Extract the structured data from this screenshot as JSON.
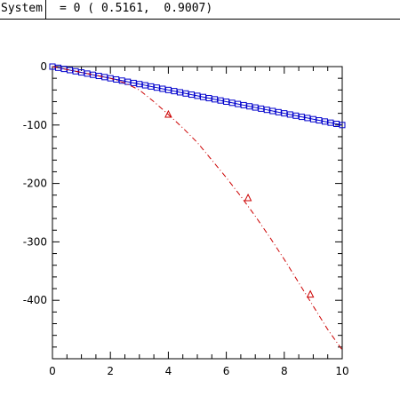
{
  "header": {
    "label": "System",
    "value": "= 0 ( 0.5161,  0.9007)"
  },
  "chart_data": {
    "type": "line",
    "title": "",
    "xlabel": "",
    "ylabel": "",
    "xlim": [
      0,
      10
    ],
    "ylim": [
      -500,
      0
    ],
    "x_ticks": [
      0,
      2,
      4,
      6,
      8,
      10
    ],
    "y_ticks": [
      0,
      -100,
      -200,
      -300,
      -400
    ],
    "series": [
      {
        "marker": "square",
        "color": "#0000cc",
        "line_style": "solid",
        "x": [
          0,
          0.2,
          0.4,
          0.6,
          0.8,
          1.0,
          1.2,
          1.4,
          1.6,
          1.8,
          2.0,
          2.2,
          2.4,
          2.6,
          2.8,
          3.0,
          3.2,
          3.4,
          3.6,
          3.8,
          4.0,
          4.2,
          4.4,
          4.6,
          4.8,
          5.0,
          5.2,
          5.4,
          5.6,
          5.8,
          6.0,
          6.2,
          6.4,
          6.6,
          6.8,
          7.0,
          7.2,
          7.4,
          7.6,
          7.8,
          8.0,
          8.2,
          8.4,
          8.6,
          8.8,
          9.0,
          9.2,
          9.4,
          9.6,
          9.8,
          10.0
        ],
        "y": [
          0,
          -2,
          -4,
          -6,
          -8,
          -10,
          -12,
          -14,
          -16,
          -18,
          -20,
          -22,
          -24,
          -26,
          -28,
          -30,
          -32,
          -34,
          -36,
          -38,
          -40,
          -42,
          -44,
          -46,
          -48,
          -50,
          -52,
          -54,
          -56,
          -58,
          -60,
          -62,
          -64,
          -66,
          -68,
          -70,
          -72,
          -74,
          -76,
          -78,
          -80,
          -82,
          -84,
          -86,
          -88,
          -90,
          -92,
          -94,
          -96,
          -98,
          -100
        ]
      },
      {
        "marker": "triangle",
        "color": "#cc0000",
        "line_style": "dash-dot",
        "x": [
          0,
          0.5,
          1.0,
          1.5,
          2.0,
          2.5,
          3.0,
          3.5,
          4.0,
          4.5,
          5.0,
          5.5,
          6.0,
          6.5,
          7.0,
          7.5,
          8.0,
          8.5,
          9.0,
          9.5,
          10.0
        ],
        "y": [
          0,
          -5,
          -10,
          -15,
          -20,
          -28,
          -40,
          -60,
          -82,
          -105,
          -130,
          -160,
          -190,
          -222,
          -256,
          -292,
          -330,
          -370,
          -410,
          -450,
          -485
        ],
        "marker_x": [
          4.0,
          6.75,
          8.9
        ],
        "marker_y": [
          -82,
          -225,
          -390
        ]
      }
    ]
  }
}
